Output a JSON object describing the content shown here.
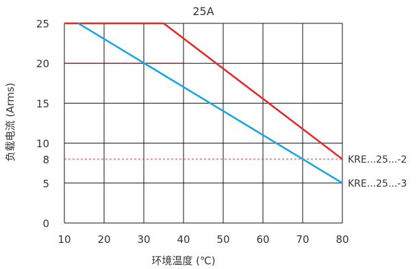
{
  "chart_data": {
    "type": "line",
    "title": "25A",
    "xlabel": "环境温度 (℃)",
    "ylabel": "负载电流 (Arms)",
    "xlim": [
      10,
      80
    ],
    "ylim": [
      0,
      25
    ],
    "x_ticks": [
      10,
      20,
      30,
      40,
      50,
      60,
      70,
      80
    ],
    "y_ticks": [
      0,
      5,
      10,
      15,
      20,
      25
    ],
    "extra_y_ticks": [
      8
    ],
    "grid": true,
    "series": [
      {
        "name": "KRE...25...-2",
        "color": "#e02a2a",
        "points": [
          [
            10,
            25
          ],
          [
            35,
            25
          ],
          [
            80,
            8
          ]
        ]
      },
      {
        "name": "KRE...25...-3",
        "color": "#1aa7dd",
        "points": [
          [
            13.5,
            25
          ],
          [
            80,
            5
          ]
        ]
      }
    ],
    "reference_lines": [
      {
        "y": 8,
        "style": "dashed",
        "color": "#e02a2a"
      }
    ]
  },
  "colors": {
    "grid": "#111111",
    "highlight_gridline": "#6b1f1f"
  }
}
